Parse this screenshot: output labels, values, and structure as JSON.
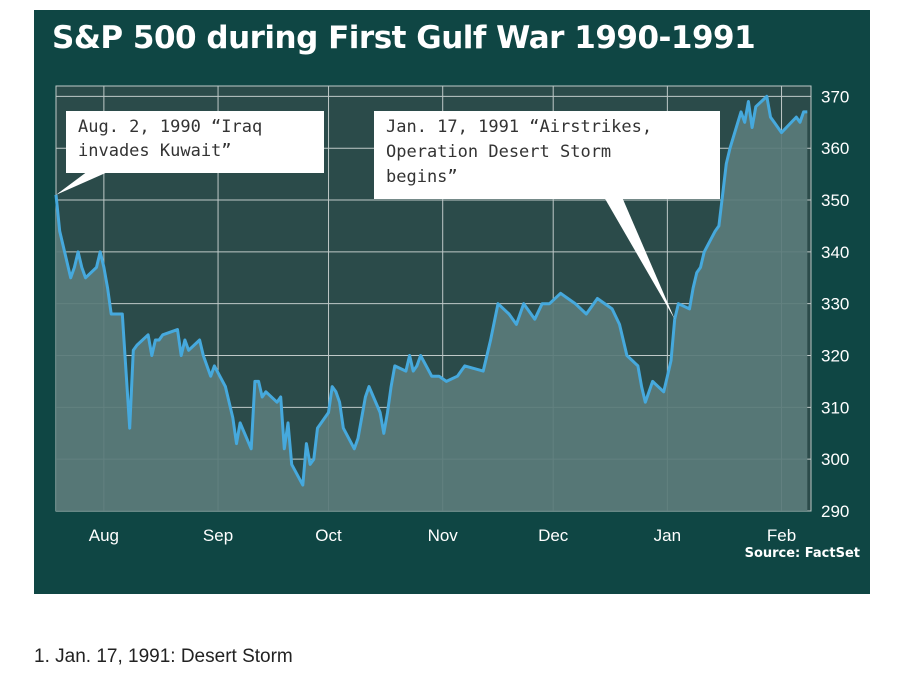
{
  "title": "S&P 500 during First Gulf War 1990-1991",
  "source": "Source: FactSet",
  "caption": "1. Jan. 17, 1991: Desert Storm",
  "colors": {
    "panel": "#0f4644",
    "plot_area": "#2b4b4a",
    "area_fill": "#5a7b7a",
    "line": "#46a9dd",
    "grid": "#bfc9c8",
    "callout_bg": "#ffffff",
    "text": "#ffffff"
  },
  "annotations": [
    {
      "lines": [
        "Aug. 2, 1990 “Iraq",
        "invades Kuwait”"
      ],
      "points_to": "1990-08-02"
    },
    {
      "lines": [
        "Jan. 17, 1991 “Airstrikes,",
        "Operation Desert Storm",
        "begins”"
      ],
      "points_to": "1991-01-17"
    }
  ],
  "chart_data": {
    "type": "area",
    "title": "S&P 500 during First Gulf War 1990-1991",
    "xlabel": "",
    "ylabel": "",
    "x_ticks": [
      "Aug",
      "Sep",
      "Oct",
      "Nov",
      "Dec",
      "Jan",
      "Feb"
    ],
    "x_tick_dates": [
      "1990-08-15",
      "1990-09-15",
      "1990-10-15",
      "1990-11-15",
      "1990-12-15",
      "1991-01-15",
      "1991-02-15"
    ],
    "x_range": [
      "1990-08-02",
      "1991-02-23"
    ],
    "y_axis_position": "right",
    "ylim": [
      290,
      372
    ],
    "y_ticks": [
      290,
      300,
      310,
      320,
      330,
      340,
      350,
      360,
      370
    ],
    "grid": true,
    "legend": "none",
    "series": [
      {
        "x": [
          "1990-08-02",
          "1990-08-03",
          "1990-08-06",
          "1990-08-07",
          "1990-08-08",
          "1990-08-09",
          "1990-08-10",
          "1990-08-13",
          "1990-08-14",
          "1990-08-15",
          "1990-08-16",
          "1990-08-17",
          "1990-08-20",
          "1990-08-21",
          "1990-08-22",
          "1990-08-23",
          "1990-08-24",
          "1990-08-27",
          "1990-08-28",
          "1990-08-29",
          "1990-08-30",
          "1990-08-31",
          "1990-09-04",
          "1990-09-05",
          "1990-09-06",
          "1990-09-07",
          "1990-09-10",
          "1990-09-11",
          "1990-09-12",
          "1990-09-13",
          "1990-09-14",
          "1990-09-17",
          "1990-09-18",
          "1990-09-19",
          "1990-09-20",
          "1990-09-21",
          "1990-09-24",
          "1990-09-25",
          "1990-09-26",
          "1990-09-27",
          "1990-09-28",
          "1990-10-01",
          "1990-10-02",
          "1990-10-03",
          "1990-10-04",
          "1990-10-05",
          "1990-10-08",
          "1990-10-09",
          "1990-10-10",
          "1990-10-11",
          "1990-10-12",
          "1990-10-15",
          "1990-10-16",
          "1990-10-17",
          "1990-10-18",
          "1990-10-19",
          "1990-10-22",
          "1990-10-23",
          "1990-10-24",
          "1990-10-25",
          "1990-10-26",
          "1990-10-29",
          "1990-10-30",
          "1990-10-31",
          "1990-11-01",
          "1990-11-02",
          "1990-11-05",
          "1990-11-06",
          "1990-11-07",
          "1990-11-08",
          "1990-11-09",
          "1990-11-12",
          "1990-11-14",
          "1990-11-16",
          "1990-11-19",
          "1990-11-21",
          "1990-11-26",
          "1990-11-28",
          "1990-11-30",
          "1990-12-03",
          "1990-12-05",
          "1990-12-07",
          "1990-12-10",
          "1990-12-12",
          "1990-12-14",
          "1990-12-17",
          "1990-12-19",
          "1990-12-21",
          "1990-12-24",
          "1990-12-27",
          "1990-12-31",
          "1991-01-02",
          "1991-01-04",
          "1991-01-07",
          "1991-01-08",
          "1991-01-09",
          "1991-01-10",
          "1991-01-11",
          "1991-01-14",
          "1991-01-15",
          "1991-01-16",
          "1991-01-17",
          "1991-01-18",
          "1991-01-21",
          "1991-01-22",
          "1991-01-23",
          "1991-01-24",
          "1991-01-25",
          "1991-01-28",
          "1991-01-29",
          "1991-01-30",
          "1991-01-31",
          "1991-02-01",
          "1991-02-04",
          "1991-02-05",
          "1991-02-06",
          "1991-02-07",
          "1991-02-08",
          "1991-02-11",
          "1991-02-12",
          "1991-02-13",
          "1991-02-14",
          "1991-02-15",
          "1991-02-19",
          "1991-02-20",
          "1991-02-21",
          "1991-02-22"
        ],
        "y": [
          351,
          344,
          335,
          337,
          340,
          337,
          335,
          337,
          340,
          337,
          333,
          328,
          328,
          317,
          306,
          321,
          322,
          324,
          320,
          323,
          323,
          324,
          325,
          320,
          323,
          321,
          323,
          320,
          318,
          316,
          318,
          314,
          311,
          308,
          303,
          307,
          302,
          315,
          315,
          312,
          313,
          311,
          312,
          302,
          307,
          299,
          295,
          303,
          299,
          300,
          306,
          309,
          314,
          313,
          311,
          306,
          302,
          304,
          308,
          312,
          314,
          309,
          305,
          309,
          314,
          318,
          317,
          320,
          317,
          318,
          320,
          316,
          316,
          315,
          316,
          318,
          317,
          323,
          330,
          328,
          326,
          330,
          327,
          330,
          330,
          332,
          331,
          330,
          328,
          331,
          329,
          326,
          320,
          318,
          314,
          311,
          313,
          315,
          313,
          316,
          319,
          327,
          330,
          329,
          333,
          336,
          337,
          340,
          344,
          345,
          351,
          357,
          360,
          367,
          365,
          369,
          364,
          368,
          370,
          366,
          365,
          364,
          363,
          366,
          365,
          367,
          367
        ]
      }
    ]
  }
}
